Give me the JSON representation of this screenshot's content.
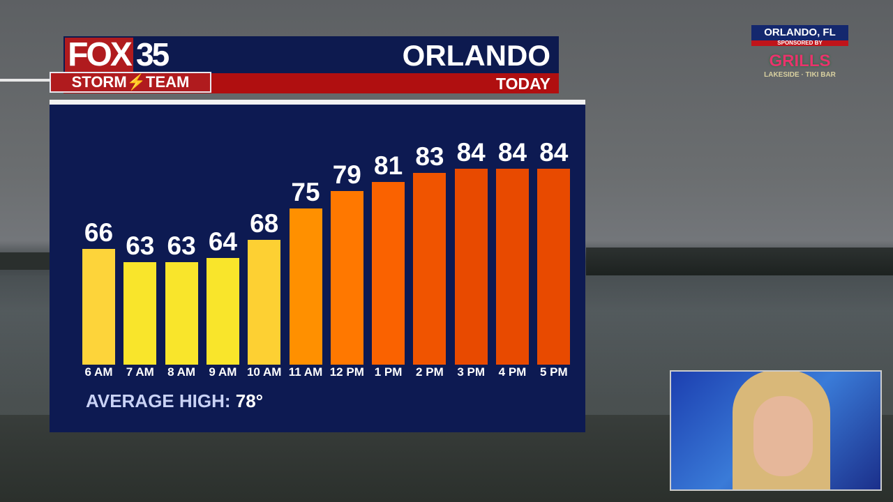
{
  "header": {
    "logo_fox": "FOX",
    "logo_num": "35",
    "storm_team": "STORM⚡TEAM",
    "city": "ORLANDO",
    "period": "TODAY"
  },
  "sponsor": {
    "location": "ORLANDO, FL",
    "sponsored_by": "SPONSORED BY",
    "brand": "GRILLS",
    "brand_sub": "LAKESIDE · TIKI BAR"
  },
  "chart_data": {
    "type": "bar",
    "categories": [
      "6 AM",
      "7 AM",
      "8 AM",
      "9 AM",
      "10 AM",
      "11 AM",
      "12 PM",
      "1 PM",
      "2 PM",
      "3 PM",
      "4 PM",
      "5 PM"
    ],
    "values": [
      66,
      63,
      63,
      64,
      68,
      75,
      79,
      81,
      83,
      84,
      84,
      84
    ],
    "colors": [
      "#fdd43a",
      "#f9e52b",
      "#f9e52b",
      "#f9e52b",
      "#fdd033",
      "#ff9000",
      "#ff7800",
      "#fa6200",
      "#f05400",
      "#e84a00",
      "#e84a00",
      "#e84a00"
    ],
    "ylim": [
      40,
      84
    ],
    "footer_label": "AVERAGE HIGH:",
    "footer_value": "78°"
  }
}
